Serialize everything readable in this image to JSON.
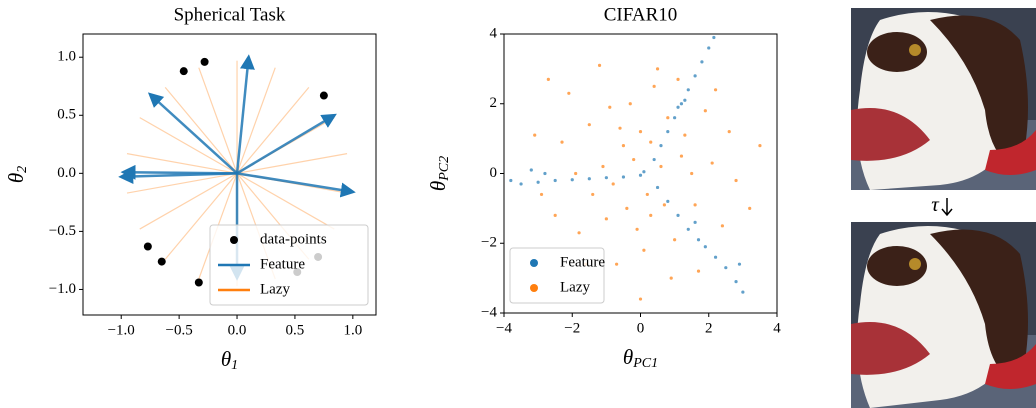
{
  "chart_data": [
    {
      "type": "vector",
      "title": "Spherical Task",
      "xlabel": {
        "symbol": "θ",
        "subscript": "1"
      },
      "ylabel": {
        "symbol": "θ",
        "subscript": "2"
      },
      "xlim": [
        -1.33,
        1.2
      ],
      "ylim": [
        -1.22,
        1.2
      ],
      "xticks": [
        {
          "value": -1,
          "label": "−1.0"
        },
        {
          "value": -0.5,
          "label": "−0.5"
        },
        {
          "value": 0,
          "label": "0.0"
        },
        {
          "value": 0.5,
          "label": "0.5"
        },
        {
          "value": 1,
          "label": "1.0"
        }
      ],
      "yticks": [
        {
          "value": -1,
          "label": "−1.0"
        },
        {
          "value": -0.5,
          "label": "−0.5"
        },
        {
          "value": 0,
          "label": "0.0"
        },
        {
          "value": 0.5,
          "label": "0.5"
        },
        {
          "value": 1,
          "label": "1.0"
        }
      ],
      "legend": "lower right",
      "series": [
        {
          "name": "data-points",
          "color": "#000000",
          "kind": "points",
          "x": [
            -0.46,
            -0.28,
            0.75,
            -0.77,
            -0.65,
            -0.33,
            0.52,
            0.7
          ],
          "values": [
            0.88,
            0.96,
            0.67,
            -0.63,
            -0.76,
            -0.94,
            -0.85,
            -0.72
          ]
        },
        {
          "name": "Feature",
          "color": "#1f77b4",
          "kind": "arrows",
          "x": [
            0.1,
            -0.75,
            0.84,
            -1.0,
            -0.98,
            1.0,
            0.0
          ],
          "values": [
            1.0,
            0.68,
            0.5,
            -0.03,
            0.01,
            -0.16,
            -0.9
          ]
        },
        {
          "name": "Lazy",
          "color": "#ff7f0e",
          "kind": "lines",
          "x": [
            0.95,
            0.84,
            0.62,
            0.33,
            0,
            -0.33,
            -0.62,
            -0.84,
            -0.95,
            -0.95,
            -0.84,
            -0.62,
            -0.33,
            0,
            0.33,
            0.62,
            0.84,
            0.95
          ],
          "values": [
            0.17,
            0.48,
            0.74,
            0.91,
            0.97,
            0.91,
            0.74,
            0.48,
            0.17,
            -0.17,
            -0.48,
            -0.74,
            -0.91,
            -0.97,
            -0.91,
            -0.74,
            -0.48,
            -0.17
          ]
        }
      ]
    },
    {
      "type": "scatter",
      "title": "CIFAR10",
      "xlabel": {
        "symbol": "θ",
        "subscript": "PC1"
      },
      "ylabel": {
        "symbol": "θ",
        "subscript": "PC2"
      },
      "xlim": [
        -4,
        4
      ],
      "ylim": [
        -4,
        4
      ],
      "xticks": [
        {
          "value": -4,
          "label": "−4"
        },
        {
          "value": -2,
          "label": "−2"
        },
        0,
        2,
        4
      ],
      "yticks": [
        {
          "value": -4,
          "label": "−4"
        },
        {
          "value": -2,
          "label": "−2"
        },
        0,
        2,
        4
      ],
      "legend": "lower left",
      "series": [
        {
          "name": "Feature",
          "color": "#1f77b4",
          "kind": "points",
          "x": [
            0.4,
            0.6,
            0.8,
            1.0,
            1.2,
            1.4,
            1.6,
            1.8,
            2.0,
            2.15,
            1.1,
            1.3,
            -0.5,
            -1.0,
            -1.5,
            -2.0,
            -2.5,
            -3.0,
            -3.5,
            -3.8,
            -3.2,
            -2.8,
            0.5,
            0.8,
            1.1,
            1.4,
            1.7,
            1.9,
            2.2,
            2.5,
            2.8,
            3.0,
            2.9,
            1.6,
            0.0,
            0.1
          ],
          "values": [
            0.4,
            0.8,
            1.2,
            1.6,
            2.0,
            2.4,
            2.8,
            3.2,
            3.6,
            3.9,
            1.9,
            2.1,
            -0.1,
            -0.12,
            -0.15,
            -0.18,
            -0.2,
            -0.25,
            -0.3,
            -0.2,
            0.1,
            0.0,
            -0.4,
            -0.8,
            -1.2,
            -1.6,
            -1.9,
            -2.1,
            -2.4,
            -2.7,
            -3.1,
            -3.4,
            -2.6,
            -1.4,
            -0.05,
            0.05
          ]
        },
        {
          "name": "Lazy",
          "color": "#ff7f0e",
          "kind": "points",
          "x": [
            -0.5,
            0.3,
            1.2,
            -1.4,
            0.8,
            -0.9,
            2.1,
            -2.3,
            0.1,
            1.6,
            -1.8,
            0.6,
            -0.2,
            1.0,
            -1.1,
            2.6,
            -2.9,
            0.4,
            -0.7,
            1.9,
            -1.5,
            0.2,
            -0.4,
            2.4,
            -2.1,
            0.9,
            3.5,
            -1.2,
            0.5,
            -3.1,
            1.3,
            -0.8,
            0.0,
            1.7,
            -2.5,
            2.8,
            -0.1,
            -1.6,
            1.1,
            -0.3,
            0.7,
            -1.9,
            2.2,
            -0.6,
            0.3,
            -1.0,
            1.5,
            -2.7,
            3.2,
            0.0
          ],
          "values": [
            0.8,
            -1.2,
            0.5,
            -0.6,
            1.6,
            1.9,
            0.3,
            0.9,
            -2.2,
            -0.9,
            -1.7,
            0.2,
            0.4,
            -1.9,
            0.2,
            1.2,
            -0.6,
            2.5,
            -2.6,
            1.8,
            1.4,
            -0.6,
            -1.0,
            -1.5,
            2.3,
            -3.0,
            0.8,
            3.1,
            3.0,
            1.1,
            1.1,
            -0.3,
            1.2,
            -2.8,
            -1.2,
            -0.2,
            -1.6,
            -2.6,
            2.7,
            2.0,
            -0.9,
            0.0,
            2.4,
            1.3,
            0.9,
            -1.3,
            0.0,
            2.7,
            -1.0,
            -3.6
          ]
        }
      ]
    }
  ],
  "transform_label": "τ"
}
